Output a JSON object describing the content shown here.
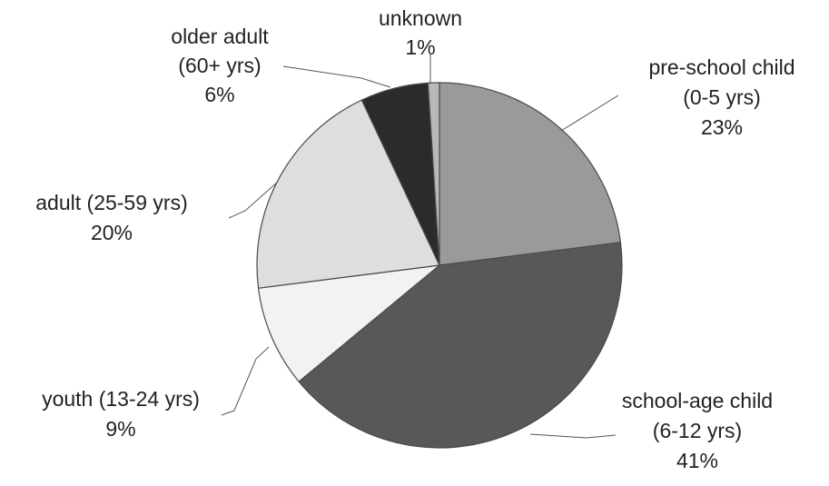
{
  "chart_data": {
    "type": "pie",
    "title": "",
    "slices": [
      {
        "label": "pre-school child (0-5 yrs)",
        "label_lines": [
          "pre-school child",
          "(0-5 yrs)"
        ],
        "value": 23,
        "value_label": "23%",
        "color": "#9a9a9a"
      },
      {
        "label": "school-age child (6-12 yrs)",
        "label_lines": [
          "school-age child",
          "(6-12 yrs)"
        ],
        "value": 41,
        "value_label": "41%",
        "color": "#585858"
      },
      {
        "label": "youth (13-24 yrs)",
        "label_lines": [
          "youth (13-24 yrs)"
        ],
        "value": 9,
        "value_label": "9%",
        "color": "#f2f2f2"
      },
      {
        "label": "adult (25-59 yrs)",
        "label_lines": [
          "adult (25-59 yrs)"
        ],
        "value": 20,
        "value_label": "20%",
        "color": "#dedede"
      },
      {
        "label": "older adult (60+ yrs)",
        "label_lines": [
          "older adult",
          "(60+ yrs)"
        ],
        "value": 6,
        "value_label": "6%",
        "color": "#2b2b2b"
      },
      {
        "label": "unknown",
        "label_lines": [
          "unknown"
        ],
        "value": 1,
        "value_label": "1%",
        "color": "#b8b8b8"
      }
    ],
    "legend": "none",
    "label_position": "outside with leader lines"
  }
}
